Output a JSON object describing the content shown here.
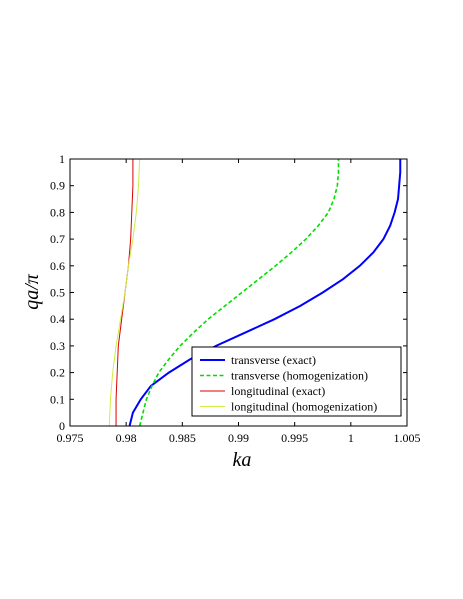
{
  "chart_data": {
    "type": "line",
    "title": "",
    "xlabel": "ka",
    "ylabel": "qa/π",
    "xlim": [
      0.975,
      1.005
    ],
    "ylim": [
      0,
      1
    ],
    "xticks": [
      0.975,
      0.98,
      0.985,
      0.99,
      0.995,
      1,
      1.005
    ],
    "xtick_labels": [
      "0.975",
      "0.98",
      "0.985",
      "0.99",
      "0.995",
      "1",
      "1.005"
    ],
    "yticks": [
      0,
      0.1,
      0.2,
      0.3,
      0.4,
      0.5,
      0.6,
      0.7,
      0.8,
      0.9,
      1
    ],
    "ytick_labels": [
      "0",
      "0.1",
      "0.2",
      "0.3",
      "0.4",
      "0.5",
      "0.6",
      "0.7",
      "0.8",
      "0.9",
      "1"
    ],
    "grid": false,
    "legend_position": "bottom-right",
    "series": [
      {
        "name": "transverse (exact)",
        "color": "#0000ff",
        "dash": "solid",
        "points": [
          [
            0.9803,
            0
          ],
          [
            0.9806,
            0.05
          ],
          [
            0.9813,
            0.1
          ],
          [
            0.9822,
            0.15
          ],
          [
            0.9838,
            0.2
          ],
          [
            0.9857,
            0.25
          ],
          [
            0.988,
            0.3
          ],
          [
            0.9906,
            0.35
          ],
          [
            0.9932,
            0.4
          ],
          [
            0.9955,
            0.45
          ],
          [
            0.9975,
            0.5
          ],
          [
            0.9993,
            0.55
          ],
          [
            1.0008,
            0.6
          ],
          [
            1.002,
            0.65
          ],
          [
            1.0029,
            0.7
          ],
          [
            1.0035,
            0.75
          ],
          [
            1.0039,
            0.8
          ],
          [
            1.0042,
            0.85
          ],
          [
            1.0043,
            0.9
          ],
          [
            1.0044,
            0.95
          ],
          [
            1.0044,
            1
          ]
        ]
      },
      {
        "name": "transverse (homogenization)",
        "color": "#00dd00",
        "dash": "dashed",
        "points": [
          [
            0.9812,
            0
          ],
          [
            0.9815,
            0.05
          ],
          [
            0.9818,
            0.1
          ],
          [
            0.9823,
            0.15
          ],
          [
            0.9829,
            0.2
          ],
          [
            0.9838,
            0.25
          ],
          [
            0.9848,
            0.3
          ],
          [
            0.986,
            0.35
          ],
          [
            0.9873,
            0.4
          ],
          [
            0.9888,
            0.45
          ],
          [
            0.9903,
            0.5
          ],
          [
            0.9918,
            0.55
          ],
          [
            0.9933,
            0.6
          ],
          [
            0.9947,
            0.65
          ],
          [
            0.996,
            0.7
          ],
          [
            0.9971,
            0.75
          ],
          [
            0.998,
            0.8
          ],
          [
            0.9985,
            0.85
          ],
          [
            0.9988,
            0.9
          ],
          [
            0.9989,
            0.95
          ],
          [
            0.9989,
            1
          ]
        ]
      },
      {
        "name": "longitudinal (exact)",
        "color": "#dd0000",
        "dash": "solid",
        "points": [
          [
            0.9791,
            0
          ],
          [
            0.9791,
            0.1
          ],
          [
            0.9792,
            0.2
          ],
          [
            0.9793,
            0.3
          ],
          [
            0.9796,
            0.4
          ],
          [
            0.9799,
            0.5
          ],
          [
            0.9802,
            0.6
          ],
          [
            0.9804,
            0.7
          ],
          [
            0.9805,
            0.8
          ],
          [
            0.9806,
            0.9
          ],
          [
            0.9806,
            1
          ]
        ]
      },
      {
        "name": "longitudinal (homogenization)",
        "color": "#ccee44",
        "dash": "solid",
        "points": [
          [
            0.9785,
            0
          ],
          [
            0.9786,
            0.1
          ],
          [
            0.9788,
            0.2
          ],
          [
            0.9791,
            0.3
          ],
          [
            0.9795,
            0.4
          ],
          [
            0.9799,
            0.5
          ],
          [
            0.9802,
            0.6
          ],
          [
            0.9806,
            0.7
          ],
          [
            0.9809,
            0.8
          ],
          [
            0.9811,
            0.9
          ],
          [
            0.9812,
            1
          ]
        ]
      }
    ]
  }
}
